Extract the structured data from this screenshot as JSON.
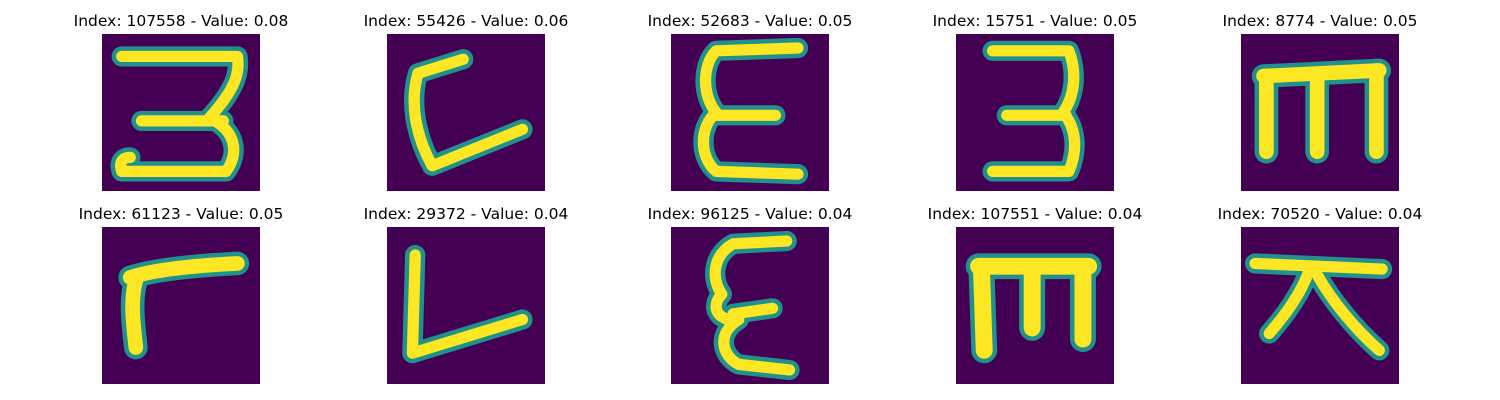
{
  "figure": {
    "colormap": "viridis",
    "background_color": "#440154",
    "stroke_color": "#fde725",
    "edge_color": "#21918c"
  },
  "panels": [
    {
      "title": "Index: 107558 - Value: 0.08",
      "glyph": "digit-3-like-glyph"
    },
    {
      "title": "Index: 55426 - Value: 0.06",
      "glyph": "c-like-glyph"
    },
    {
      "title": "Index: 52683 - Value: 0.05",
      "glyph": "epsilon-like-glyph"
    },
    {
      "title": "Index: 15751 - Value: 0.05",
      "glyph": "digit-3-like-glyph"
    },
    {
      "title": "Index: 8774 - Value: 0.05",
      "glyph": "m-like-glyph"
    },
    {
      "title": "Index: 61123 - Value: 0.05",
      "glyph": "r-like-glyph"
    },
    {
      "title": "Index: 29372 - Value: 0.04",
      "glyph": "l-like-glyph"
    },
    {
      "title": "Index: 96125 - Value: 0.04",
      "glyph": "epsilon-like-glyph"
    },
    {
      "title": "Index: 107551 - Value: 0.04",
      "glyph": "m-like-glyph"
    },
    {
      "title": "Index: 70520 - Value: 0.04",
      "glyph": "cross-like-glyph"
    }
  ]
}
